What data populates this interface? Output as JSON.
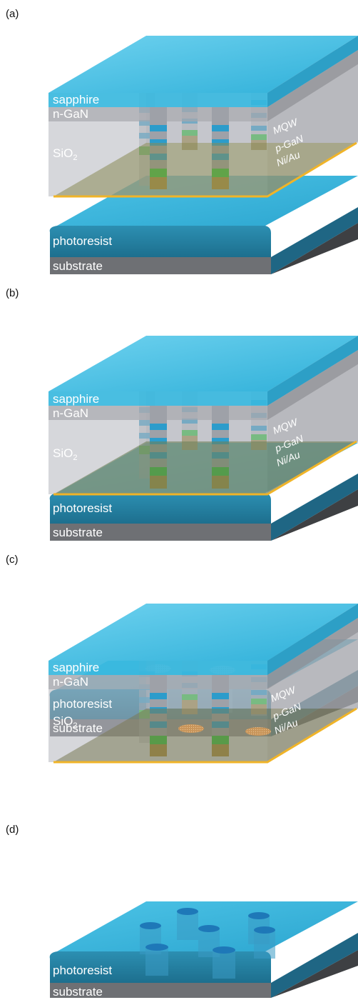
{
  "panels": [
    {
      "label": "(a)",
      "layers": {
        "sapphire": "sapphire",
        "ngan": "n-GaN",
        "sio2": "SiO",
        "sio2_sub": "2",
        "mqw": "MQW",
        "pgan": "p-GaN",
        "niau": "Ni/Au",
        "photoresist": "photoresist",
        "substrate": "substrate"
      }
    },
    {
      "label": "(b)",
      "layers": {
        "sapphire": "sapphire",
        "ngan": "n-GaN",
        "sio2": "SiO",
        "sio2_sub": "2",
        "mqw": "MQW",
        "pgan": "p-GaN",
        "niau": "Ni/Au",
        "photoresist": "photoresist",
        "substrate": "substrate"
      }
    },
    {
      "label": "(c)",
      "layers": {
        "sapphire": "sapphire",
        "ngan": "n-GaN",
        "sio2": "SiO",
        "sio2_sub": "2",
        "mqw": "MQW",
        "pgan": "p-GaN",
        "niau": "Ni/Au",
        "photoresist": "photoresist",
        "substrate": "substrate"
      }
    },
    {
      "label": "(d)",
      "layers": {
        "photoresist": "photoresist",
        "substrate": "substrate"
      }
    }
  ],
  "colors": {
    "sapphire": "#35b6dd",
    "gan": "#a9aab0",
    "metal": "#f0b428",
    "pgan": "#2fc23a",
    "photoresist": "#2a8fb4",
    "substrate": "#6e7074"
  }
}
